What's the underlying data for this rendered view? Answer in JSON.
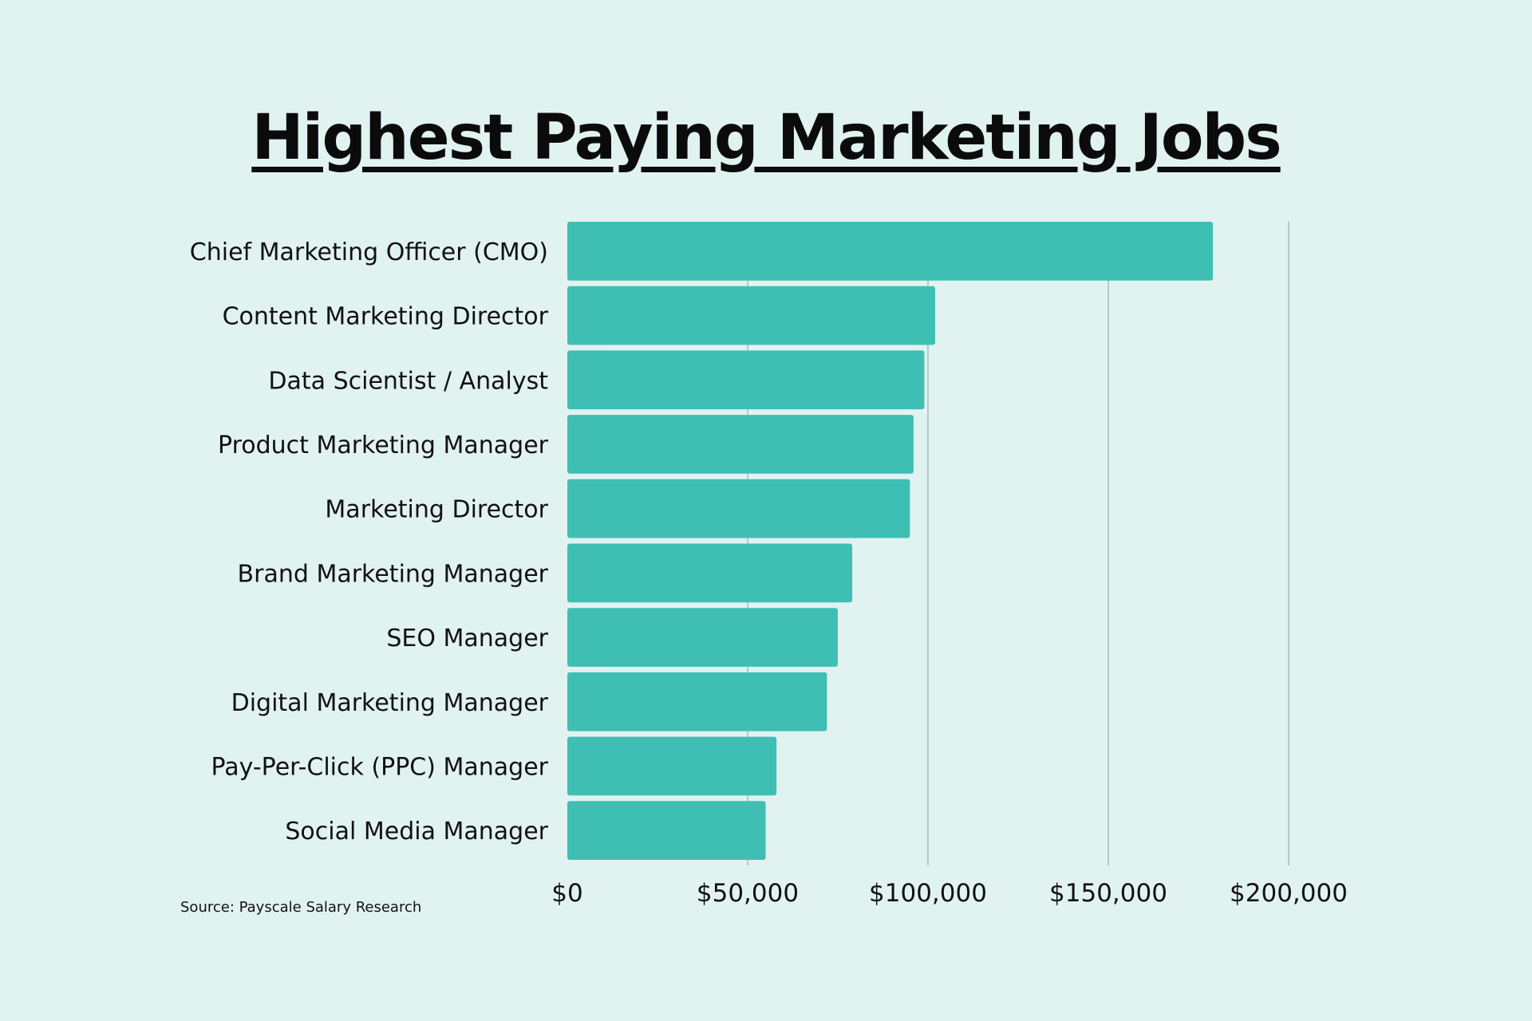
{
  "colors": {
    "background": "#e1f3f1",
    "bar": "#3fbfb4",
    "grid": "#b9c7c6",
    "text": "#111111"
  },
  "source": "Source: Payscale Salary Research",
  "chart_data": {
    "type": "bar",
    "orientation": "horizontal",
    "title": "Highest Paying Marketing Jobs",
    "xlabel": "",
    "ylabel": "",
    "categories": [
      "Chief Marketing Officer (CMO)",
      "Content Marketing Director",
      "Data Scientist / Analyst",
      "Product Marketing Manager",
      "Marketing Director",
      "Brand Marketing Manager",
      "SEO Manager",
      "Digital Marketing Manager",
      "Pay-Per-Click (PPC) Manager",
      "Social Media Manager"
    ],
    "values": [
      179000,
      102000,
      99000,
      96000,
      95000,
      79000,
      75000,
      72000,
      58000,
      55000
    ],
    "xlim": [
      0,
      200000
    ],
    "x_ticks": [
      0,
      50000,
      100000,
      150000,
      200000
    ],
    "x_tick_labels": [
      "$0",
      "$50,000",
      "$100,000",
      "$150,000",
      "$200,000"
    ],
    "grid": true,
    "legend": "none"
  }
}
